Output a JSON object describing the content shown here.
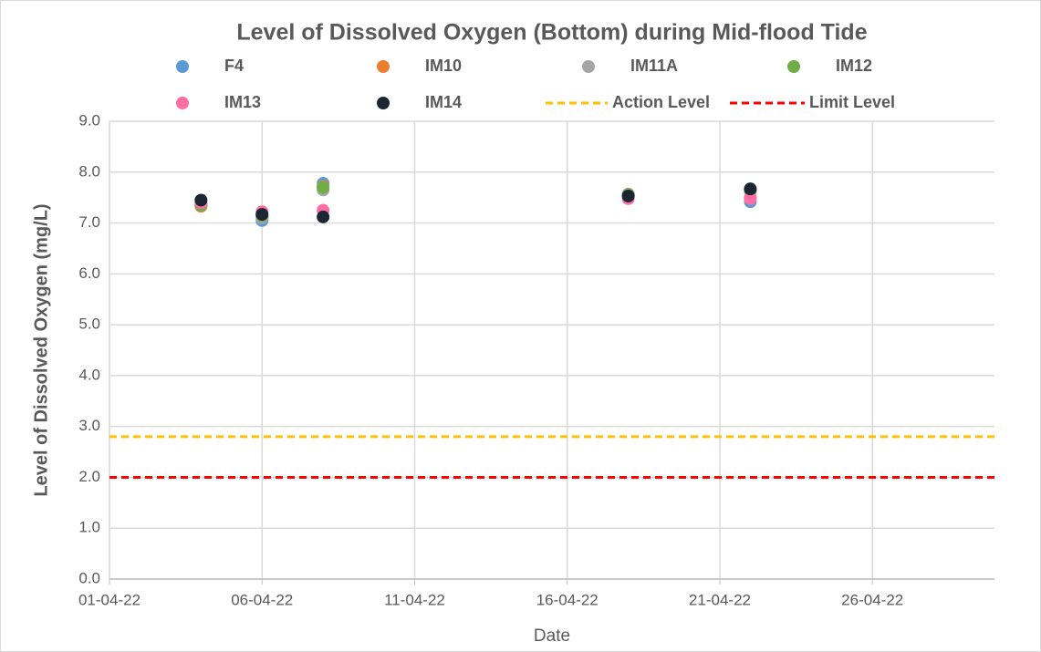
{
  "chart_data": {
    "type": "scatter",
    "title": "Level of Dissolved Oxygen (Bottom) during Mid-flood Tide",
    "x_label": "Date",
    "y_label": "Level of Dissolved Oxygen (mg/L)",
    "x": [
      "2022-04-04",
      "2022-04-06",
      "2022-04-08",
      "2022-04-18",
      "2022-04-22"
    ],
    "series": [
      {
        "name": "F4",
        "color": "#5b9bd5",
        "values": [
          7.35,
          7.05,
          7.78,
          7.55,
          7.42
        ]
      },
      {
        "name": "IM10",
        "color": "#ed7d31",
        "values": [
          7.33,
          7.15,
          7.72,
          7.53,
          7.5
        ]
      },
      {
        "name": "IM11A",
        "color": "#a5a5a5",
        "values": [
          7.35,
          7.1,
          7.65,
          7.57,
          7.62
        ]
      },
      {
        "name": "IM12",
        "color": "#70ad47",
        "values": [
          7.35,
          7.15,
          7.7,
          7.55,
          7.65
        ]
      },
      {
        "name": "IM13",
        "color": "#ff6fa5",
        "values": [
          7.4,
          7.22,
          7.25,
          7.48,
          7.48
        ]
      },
      {
        "name": "IM14",
        "color": "#1c2632",
        "values": [
          7.45,
          7.17,
          7.12,
          7.53,
          7.67
        ]
      }
    ],
    "reference_lines": [
      {
        "name": "Action Level",
        "color": "#ffc000",
        "value": 2.8
      },
      {
        "name": "Limit Level",
        "color": "#ff0000",
        "value": 2.0
      }
    ],
    "xlim": [
      "2022-04-01",
      "2022-04-30"
    ],
    "xticks": [
      {
        "value": "2022-04-01",
        "label": "01-04-22"
      },
      {
        "value": "2022-04-06",
        "label": "06-04-22"
      },
      {
        "value": "2022-04-11",
        "label": "11-04-22"
      },
      {
        "value": "2022-04-16",
        "label": "16-04-22"
      },
      {
        "value": "2022-04-21",
        "label": "21-04-22"
      },
      {
        "value": "2022-04-26",
        "label": "26-04-22"
      }
    ],
    "ylim": [
      0,
      9
    ],
    "yticks": [
      {
        "value": 0,
        "label": "0.0"
      },
      {
        "value": 1,
        "label": "1.0"
      },
      {
        "value": 2,
        "label": "2.0"
      },
      {
        "value": 3,
        "label": "3.0"
      },
      {
        "value": 4,
        "label": "4.0"
      },
      {
        "value": 5,
        "label": "5.0"
      },
      {
        "value": 6,
        "label": "6.0"
      },
      {
        "value": 7,
        "label": "7.0"
      },
      {
        "value": 8,
        "label": "8.0"
      },
      {
        "value": 9,
        "label": "9.0"
      }
    ],
    "grid": true
  }
}
